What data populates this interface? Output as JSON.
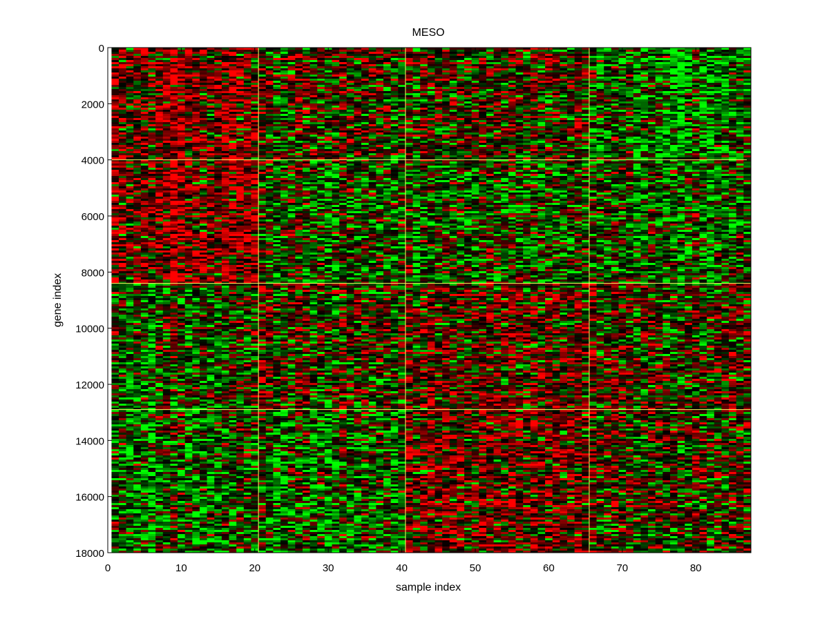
{
  "chart_data": {
    "type": "heatmap",
    "title": "MESO",
    "xlabel": "sample index",
    "ylabel": "gene index",
    "xlim": [
      0,
      87.5
    ],
    "ylim": [
      18000,
      0
    ],
    "x_ticks": [
      0,
      10,
      20,
      30,
      40,
      50,
      60,
      70,
      80
    ],
    "y_ticks": [
      0,
      2000,
      4000,
      6000,
      8000,
      10000,
      12000,
      14000,
      16000,
      18000
    ],
    "x_ticklabels": [
      "0",
      "10",
      "20",
      "30",
      "40",
      "50",
      "60",
      "70",
      "80"
    ],
    "y_ticklabels": [
      "0",
      "2000",
      "4000",
      "6000",
      "8000",
      "10000",
      "12000",
      "14000",
      "16000",
      "18000"
    ],
    "n_samples": 87,
    "n_genes": 18000,
    "sample_group_boundaries": [
      20.5,
      40.5,
      65.5
    ],
    "gene_group_boundaries": [
      4000,
      8400,
      12900
    ],
    "separator_color": "#ffff66",
    "colormap": {
      "low": "#00ff00",
      "mid": "#000000",
      "high": "#ff0000"
    },
    "block_tendency_note": "",
    "block_bias": [
      [
        0.35,
        0.05,
        0.05,
        -0.35
      ],
      [
        0.35,
        -0.15,
        -0.2,
        -0.25
      ],
      [
        -0.2,
        0.05,
        0.15,
        0.05
      ],
      [
        -0.3,
        -0.25,
        0.3,
        0.05
      ]
    ]
  }
}
